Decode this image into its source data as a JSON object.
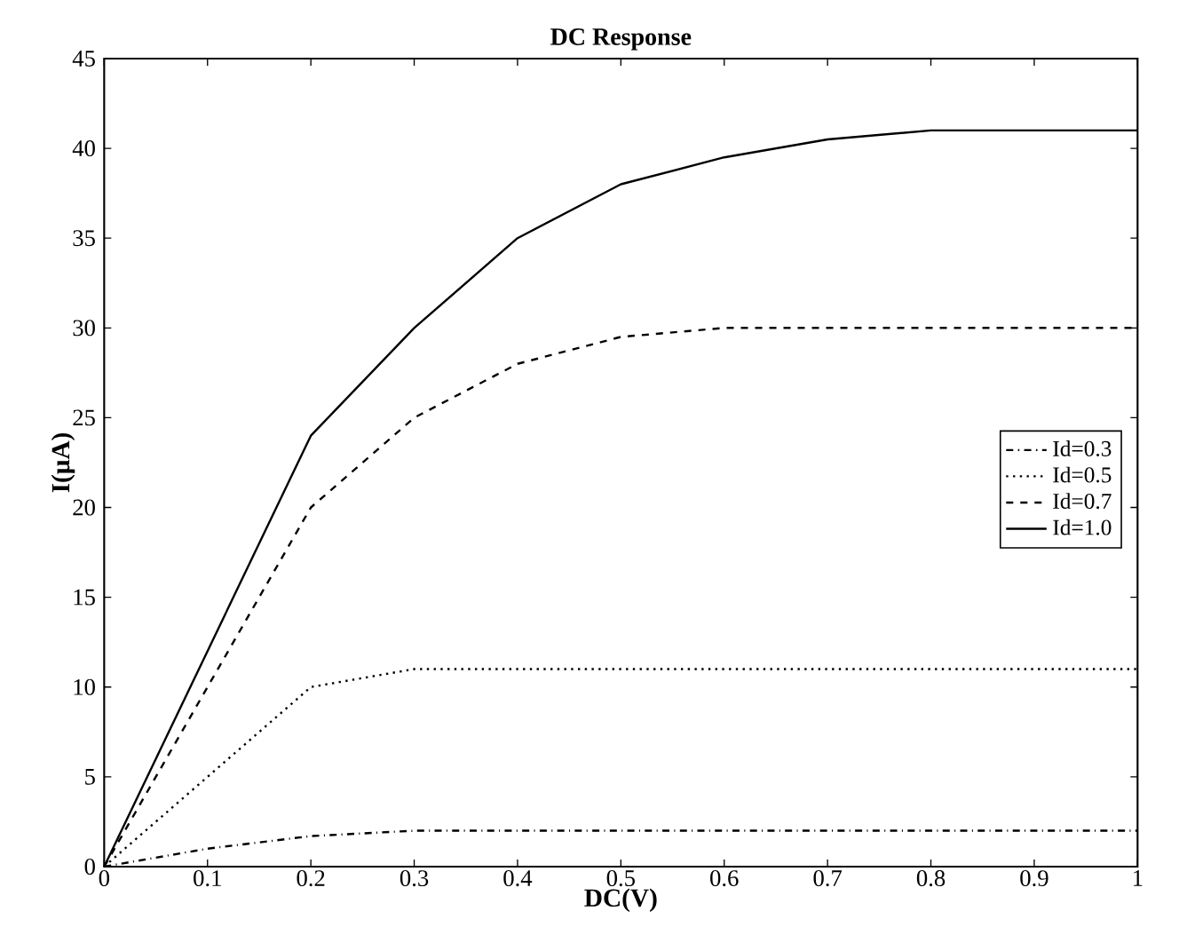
{
  "chart_data": {
    "type": "line",
    "title": "DC Response",
    "xlabel": "DC(V)",
    "ylabel": "I(μA)",
    "x": [
      0,
      0.1,
      0.2,
      0.3,
      0.4,
      0.5,
      0.6,
      0.7,
      0.8,
      0.9,
      1
    ],
    "series": [
      {
        "name": "Id=0.3",
        "color": "#000000",
        "line_style": "dashdot",
        "values": [
          0,
          1.0,
          1.7,
          2.0,
          2.0,
          2.0,
          2.0,
          2.0,
          2.0,
          2.0,
          2.0
        ]
      },
      {
        "name": "Id=0.5",
        "color": "#000000",
        "line_style": "dotted",
        "values": [
          0,
          5,
          10,
          11,
          11,
          11,
          11,
          11,
          11,
          11,
          11
        ]
      },
      {
        "name": "Id=0.7",
        "color": "#000000",
        "line_style": "dashed",
        "values": [
          0,
          10,
          20,
          25,
          28,
          29.5,
          30,
          30,
          30,
          30,
          30
        ]
      },
      {
        "name": "Id=1.0",
        "color": "#000000",
        "line_style": "solid",
        "values": [
          0,
          12,
          24,
          30,
          35,
          38,
          39.5,
          40.5,
          41,
          41,
          41
        ]
      }
    ],
    "xlim": [
      0,
      1
    ],
    "ylim": [
      0,
      45
    ],
    "xticks": [
      0,
      0.1,
      0.2,
      0.3,
      0.4,
      0.5,
      0.6,
      0.7,
      0.8,
      0.9,
      1
    ],
    "yticks": [
      0,
      5,
      10,
      15,
      20,
      25,
      30,
      35,
      40,
      45
    ],
    "grid": false,
    "legend": "right"
  }
}
